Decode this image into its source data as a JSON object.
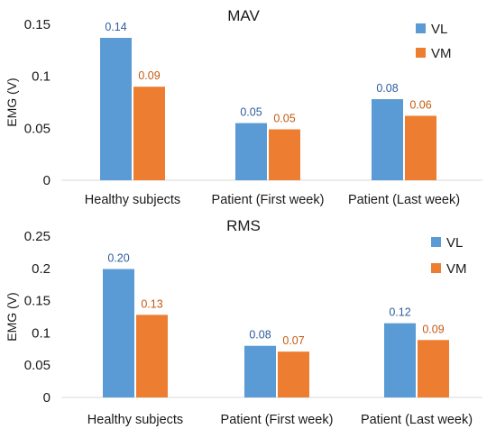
{
  "chart_data": [
    {
      "type": "bar",
      "title": "MAV",
      "ylabel": "EMG (V)",
      "xlabel": "",
      "ylim": [
        0,
        0.15
      ],
      "yticks": [
        "0",
        "0.05",
        "0.1",
        "0.15"
      ],
      "categories": [
        "Healthy subjects",
        "Patient (First week)",
        "Patient (Last week)"
      ],
      "series": [
        {
          "name": "VL",
          "values": [
            0.137,
            0.055,
            0.078
          ],
          "labels": [
            "0.14",
            "0.05",
            "0.08"
          ]
        },
        {
          "name": "VM",
          "values": [
            0.09,
            0.049,
            0.062
          ],
          "labels": [
            "0.09",
            "0.05",
            "0.06"
          ]
        }
      ],
      "legend": "top-right",
      "grid": false
    },
    {
      "type": "bar",
      "title": "RMS",
      "ylabel": "EMG (V)",
      "xlabel": "",
      "ylim": [
        0,
        0.25
      ],
      "yticks": [
        "0",
        "0.05",
        "0.1",
        "0.15",
        "0.2",
        "0.25"
      ],
      "categories": [
        "Healthy subjects",
        "Patient (First week)",
        "Patient (Last week)"
      ],
      "series": [
        {
          "name": "VL",
          "values": [
            0.199,
            0.08,
            0.115
          ],
          "labels": [
            "0.20",
            "0.08",
            "0.12"
          ]
        },
        {
          "name": "VM",
          "values": [
            0.128,
            0.071,
            0.089
          ],
          "labels": [
            "0.13",
            "0.07",
            "0.09"
          ]
        }
      ],
      "legend": "top-right",
      "grid": false
    }
  ],
  "colors": {
    "VL": "#5b9bd5",
    "VM": "#ed7d31",
    "VL_label": "#2e5c9e",
    "VM_label": "#c55a11",
    "axis": "#d9d9d9"
  }
}
